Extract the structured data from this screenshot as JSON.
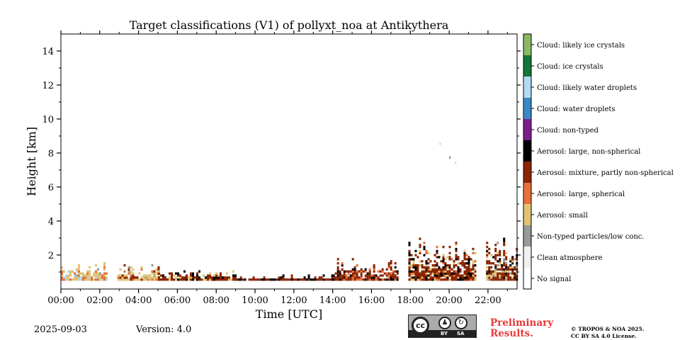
{
  "chart_data": {
    "type": "heatmap",
    "title": "Target classifications (V1) of pollyxt_noa at Antikythera",
    "xlabel": "Time [UTC]",
    "ylabel": "Height [km]",
    "xlim": [
      0,
      23.5
    ],
    "ylim": [
      0,
      15
    ],
    "x_ticks": [
      0,
      2,
      4,
      6,
      8,
      10,
      12,
      14,
      16,
      18,
      20,
      22
    ],
    "x_tick_labels": [
      "00:00",
      "02:00",
      "04:00",
      "06:00",
      "08:00",
      "10:00",
      "12:00",
      "14:00",
      "16:00",
      "18:00",
      "20:00",
      "22:00"
    ],
    "y_ticks": [
      2,
      4,
      6,
      8,
      10,
      12,
      14
    ],
    "y_tick_labels": [
      "2",
      "4",
      "6",
      "8",
      "10",
      "12",
      "14"
    ],
    "classes": [
      {
        "code": 0,
        "label": "No signal",
        "color": "#ffffff"
      },
      {
        "code": 1,
        "label": "Clean atmosphere",
        "color": "#f0f0f0"
      },
      {
        "code": 2,
        "label": "Non-typed particles/low conc.",
        "color": "#999999"
      },
      {
        "code": 3,
        "label": "Aerosol: small",
        "color": "#e0c376"
      },
      {
        "code": 4,
        "label": "Aerosol: large, spherical",
        "color": "#e8703a"
      },
      {
        "code": 5,
        "label": "Aerosol: mixture, partly non-spherical",
        "color": "#8a2503"
      },
      {
        "code": 6,
        "label": "Aerosol: large, non-spherical",
        "color": "#000000"
      },
      {
        "code": 7,
        "label": "Cloud: non-typed",
        "color": "#7d1e8e"
      },
      {
        "code": 8,
        "label": "Cloud: water droplets",
        "color": "#3b88c4"
      },
      {
        "code": 9,
        "label": "Cloud: likely water droplets",
        "color": "#b3d9f3"
      },
      {
        "code": 10,
        "label": "Cloud: ice crystals",
        "color": "#15753b"
      },
      {
        "code": 11,
        "label": "Cloud: likely ice crystals",
        "color": "#8ab865"
      }
    ],
    "data_segments": [
      {
        "start_h": 0.0,
        "end_h": 2.3,
        "top_km": 1.6,
        "dominant": [
          3,
          4,
          9,
          2
        ]
      },
      {
        "start_h": 2.9,
        "end_h": 5.0,
        "top_km": 1.5,
        "dominant": [
          3,
          5,
          4,
          2
        ]
      },
      {
        "start_h": 5.0,
        "end_h": 9.0,
        "top_km": 1.2,
        "dominant": [
          5,
          6,
          3
        ]
      },
      {
        "start_h": 9.0,
        "end_h": 14.0,
        "top_km": 0.9,
        "dominant": [
          5,
          6
        ]
      },
      {
        "start_h": 14.0,
        "end_h": 17.3,
        "top_km": 1.8,
        "dominant": [
          5,
          6,
          4
        ]
      },
      {
        "start_h": 17.9,
        "end_h": 21.4,
        "top_km": 3.0,
        "dominant": [
          5,
          6,
          3,
          4
        ]
      },
      {
        "start_h": 21.9,
        "end_h": 23.5,
        "top_km": 3.0,
        "dominant": [
          5,
          3,
          6,
          2
        ]
      }
    ],
    "clouds": [
      {
        "time_h": 19.5,
        "height_km": 8.6,
        "class": 9
      },
      {
        "time_h": 20.0,
        "height_km": 7.8,
        "class": 8
      },
      {
        "time_h": 20.3,
        "height_km": 7.5,
        "class": 9
      }
    ]
  },
  "footer": {
    "date": "2025-09-03",
    "version": "Version: 4.0",
    "preliminary_line1": "Preliminary",
    "preliminary_line2": "Results.",
    "copyright_line1": "© TROPOS & NOA 2025.",
    "copyright_line2": "CC BY SA 4.0 License.",
    "cc_label": "cc",
    "by_label": "BY",
    "sa_label": "SA"
  }
}
